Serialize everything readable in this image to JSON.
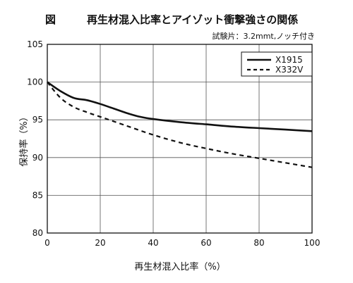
{
  "chart_data": {
    "type": "line",
    "figure_label": "図",
    "title": "再生材混入比率とアイゾット衝撃強さの関係",
    "subtitle": "試験片：3.2mmt,ノッチ付き",
    "xlabel": "再生材混入比率（%）",
    "ylabel": "保持率（%）",
    "xlim": [
      0,
      100
    ],
    "ylim": [
      80,
      105
    ],
    "xticks": [
      0,
      20,
      40,
      60,
      80,
      100
    ],
    "yticks": [
      80,
      85,
      90,
      95,
      100,
      105
    ],
    "grid": true,
    "legend_position": "top-right",
    "series": [
      {
        "name": "X1915",
        "style": "solid",
        "color": "#111111",
        "x": [
          0,
          5,
          10,
          15,
          20,
          25,
          30,
          35,
          40,
          50,
          60,
          70,
          80,
          90,
          100
        ],
        "y": [
          100,
          98.8,
          97.9,
          97.6,
          97.1,
          96.5,
          95.9,
          95.4,
          95.1,
          94.7,
          94.4,
          94.1,
          93.9,
          93.7,
          93.5
        ]
      },
      {
        "name": "X332V",
        "style": "dashed",
        "color": "#111111",
        "x": [
          0,
          5,
          10,
          15,
          20,
          30,
          40,
          50,
          60,
          70,
          80,
          90,
          100
        ],
        "y": [
          100,
          97.9,
          96.7,
          96.0,
          95.4,
          94.2,
          93.0,
          92.0,
          91.2,
          90.5,
          89.9,
          89.3,
          88.7
        ]
      }
    ]
  }
}
